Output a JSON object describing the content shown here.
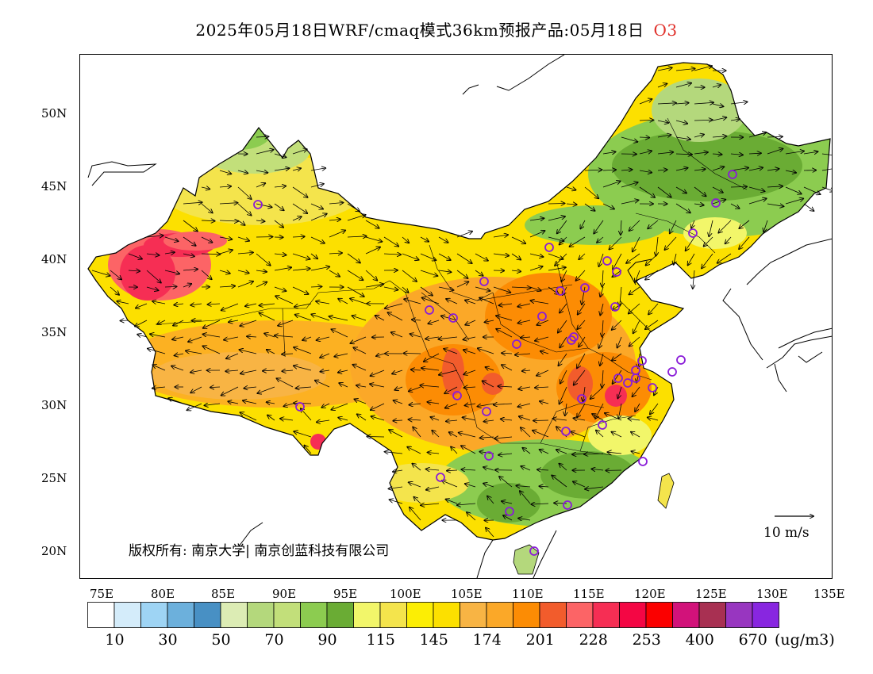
{
  "title": {
    "text": "2025年05月18日WRF/cmaq模式36km预报产品:05月18日",
    "pollutant": "O3",
    "pollutant_color": "#e0302a"
  },
  "axes": {
    "lat_labels": [
      "50N",
      "45N",
      "40N",
      "35N",
      "30N",
      "25N",
      "20N"
    ],
    "lon_labels": [
      "75E",
      "80E",
      "85E",
      "90E",
      "95E",
      "100E",
      "105E",
      "110E",
      "115E",
      "120E",
      "125E",
      "130E",
      "135E"
    ]
  },
  "copyright": "版权所有: 南京大学| 南京创蓝科技有限公司",
  "wind_scale": {
    "label": "10 m/s"
  },
  "colorbar": {
    "colors": [
      "#ffffff",
      "#d4ecfa",
      "#9ed4f4",
      "#6cb0dc",
      "#4890c4",
      "#dcecb4",
      "#b4d87c",
      "#c2df7a",
      "#8ccc50",
      "#6aac34",
      "#f2f66a",
      "#f4e44c",
      "#fcee04",
      "#fce000",
      "#f8b444",
      "#fba828",
      "#fc8c04",
      "#f25c2c",
      "#fc6466",
      "#f62e54",
      "#f40644",
      "#fb0000",
      "#d2127a",
      "#a83052",
      "#9836c0",
      "#8826e0"
    ],
    "labels": [
      "10",
      "30",
      "50",
      "70",
      "90",
      "115",
      "145",
      "174",
      "201",
      "228",
      "253",
      "400",
      "670"
    ],
    "unit": "(ug/m3)"
  },
  "stations": 37
}
